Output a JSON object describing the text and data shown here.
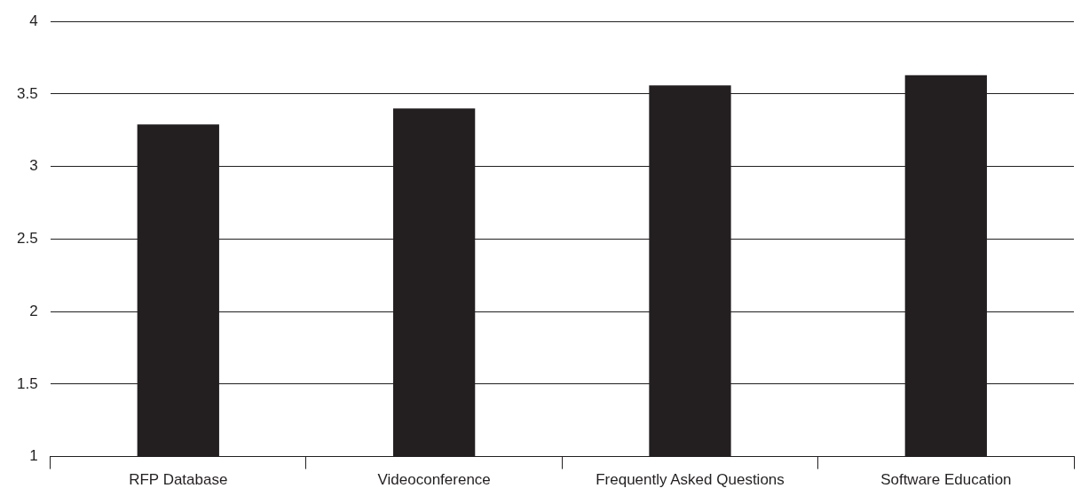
{
  "chart_data": {
    "type": "bar",
    "categories": [
      "RFP Database",
      "Videoconference",
      "Frequently Asked Questions",
      "Software Education"
    ],
    "values": [
      3.29,
      3.4,
      3.56,
      3.63
    ],
    "color": "#231f20",
    "ylim": [
      1,
      4
    ],
    "yticks": [
      1,
      1.5,
      2,
      2.5,
      3,
      3.5,
      4
    ],
    "grid": "y",
    "legend": false
  }
}
